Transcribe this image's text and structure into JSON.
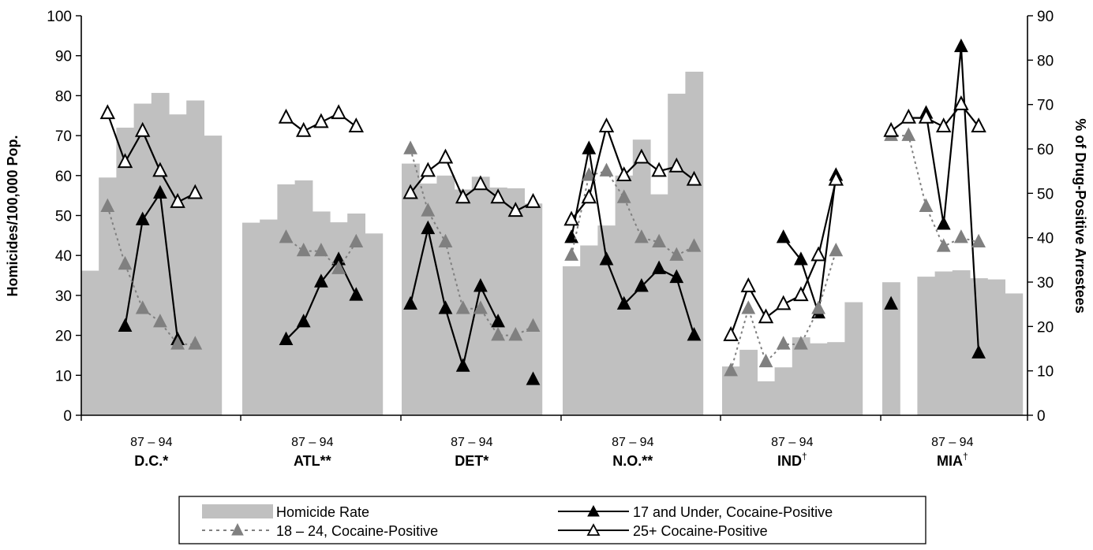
{
  "chart_data": {
    "type": "bar",
    "ylabel": "Homicides/100,000 Pop.",
    "y2label": "% of Drug-Positive Arrestees",
    "ylim": [
      0,
      100
    ],
    "y2lim": [
      0,
      90
    ],
    "yticks": [
      "0",
      "10",
      "20",
      "30",
      "40",
      "50",
      "60",
      "70",
      "80",
      "90",
      "100"
    ],
    "y2ticks": [
      "0",
      "10",
      "20",
      "30",
      "40",
      "50",
      "60",
      "70",
      "80",
      "90"
    ],
    "grid": false,
    "legend_position": "bottom",
    "years": [
      "87",
      "88",
      "89",
      "90",
      "91",
      "92",
      "93",
      "94"
    ],
    "cities": [
      {
        "name": "D.C.",
        "mark": "*",
        "mark_super": false,
        "range_label": "87 – 94",
        "homicide_rate": [
          36.2,
          59.5,
          72,
          78,
          80.7,
          75.3,
          78.8,
          70
        ],
        "age17_under_cocaine": [
          null,
          null,
          20,
          44,
          50,
          17,
          null,
          null
        ],
        "age18_24_cocaine": [
          null,
          47,
          34,
          24,
          21,
          16,
          16,
          null
        ],
        "age25_plus_cocaine": [
          null,
          68,
          57,
          64,
          55,
          48,
          50,
          null
        ]
      },
      {
        "name": "ATL",
        "mark": "**",
        "mark_super": false,
        "range_label": "87 – 94",
        "homicide_rate": [
          48.2,
          49,
          57.8,
          58.8,
          51,
          48.3,
          50.5,
          45.5
        ],
        "age17_under_cocaine": [
          null,
          null,
          17,
          21,
          30,
          35,
          27,
          null
        ],
        "age18_24_cocaine": [
          null,
          null,
          40,
          37,
          37,
          33,
          39,
          null
        ],
        "age25_plus_cocaine": [
          null,
          null,
          67,
          64,
          66,
          68,
          65,
          null
        ]
      },
      {
        "name": "DET",
        "mark": "*",
        "mark_super": false,
        "range_label": "87 – 94",
        "homicide_rate": [
          63,
          58,
          60,
          56.5,
          59.7,
          57,
          56.8,
          53
        ],
        "age17_under_cocaine": [
          25,
          42,
          24,
          11,
          29,
          21,
          null,
          8
        ],
        "age18_24_cocaine": [
          60,
          46,
          39,
          24,
          24,
          18,
          18,
          20
        ],
        "age25_plus_cocaine": [
          50,
          55,
          58,
          49,
          52,
          49,
          46,
          48
        ]
      },
      {
        "name": "N.O.",
        "mark": "**",
        "mark_super": false,
        "range_label": "87 – 94",
        "homicide_rate": [
          37.3,
          42.5,
          47.5,
          60,
          69,
          55.3,
          80.5,
          86
        ],
        "age17_under_cocaine": [
          40,
          60,
          35,
          25,
          29,
          33,
          31,
          18
        ],
        "age18_24_cocaine": [
          36,
          54,
          55,
          49,
          40,
          39,
          36,
          38
        ],
        "age25_plus_cocaine": [
          44,
          49,
          65,
          54,
          58,
          55,
          56,
          53
        ]
      },
      {
        "name": "IND",
        "mark": "†",
        "mark_super": true,
        "range_label": "87 – 94",
        "homicide_rate": [
          12.2,
          16.4,
          8.5,
          12,
          19.5,
          18,
          18.3,
          28.3
        ],
        "age17_under_cocaine": [
          null,
          null,
          null,
          40,
          35,
          23,
          54,
          null
        ],
        "age18_24_cocaine": [
          10,
          24,
          12,
          16,
          16,
          24,
          37,
          null
        ],
        "age25_plus_cocaine": [
          18,
          29,
          22,
          25,
          27,
          36,
          53,
          null
        ]
      },
      {
        "name": "MIA",
        "mark": "†",
        "mark_super": true,
        "range_label": "87 – 94",
        "homicide_rate": [
          33.3,
          null,
          34.7,
          36,
          36.3,
          34.3,
          34,
          30.5
        ],
        "age17_under_cocaine": [
          25,
          null,
          68,
          43,
          83,
          14,
          null,
          null
        ],
        "age18_24_cocaine": [
          63,
          63,
          47,
          38,
          40,
          39,
          null,
          null
        ],
        "age25_plus_cocaine": [
          64,
          67,
          67,
          65,
          70,
          65,
          null,
          null
        ]
      }
    ],
    "series": [
      {
        "key": "homicide_rate",
        "name": "Homicide Rate",
        "kind": "bar",
        "color": "#c0c0c0",
        "axis": "left"
      },
      {
        "key": "age17_under_cocaine",
        "name": "17 and Under, Cocaine-Positive",
        "kind": "line",
        "marker": "filled-triangle",
        "color": "#000000",
        "dash": "solid",
        "axis": "right"
      },
      {
        "key": "age18_24_cocaine",
        "name": "18 – 24, Cocaine-Positive",
        "kind": "line",
        "marker": "filled-triangle",
        "color": "#808080",
        "dash": "dotted",
        "axis": "right"
      },
      {
        "key": "age25_plus_cocaine",
        "name": "25+ Cocaine-Positive",
        "kind": "line",
        "marker": "open-triangle",
        "color": "#000000",
        "dash": "solid",
        "axis": "right"
      }
    ]
  }
}
